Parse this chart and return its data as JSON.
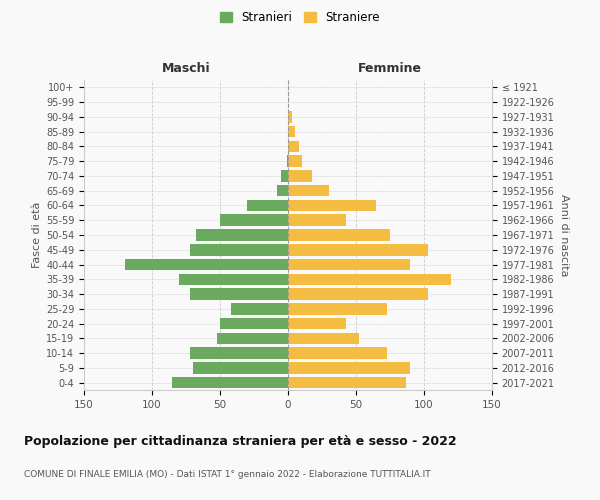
{
  "age_groups_bottom_to_top": [
    "0-4",
    "5-9",
    "10-14",
    "15-19",
    "20-24",
    "25-29",
    "30-34",
    "35-39",
    "40-44",
    "45-49",
    "50-54",
    "55-59",
    "60-64",
    "65-69",
    "70-74",
    "75-79",
    "80-84",
    "85-89",
    "90-94",
    "95-99",
    "100+"
  ],
  "birth_years_bottom_to_top": [
    "2017-2021",
    "2012-2016",
    "2007-2011",
    "2002-2006",
    "1997-2001",
    "1992-1996",
    "1987-1991",
    "1982-1986",
    "1977-1981",
    "1972-1976",
    "1967-1971",
    "1962-1966",
    "1957-1961",
    "1952-1956",
    "1947-1951",
    "1942-1946",
    "1937-1941",
    "1932-1936",
    "1927-1931",
    "1922-1926",
    "≤ 1921"
  ],
  "maschi_bottom_to_top": [
    85,
    70,
    72,
    52,
    50,
    42,
    72,
    80,
    120,
    72,
    68,
    50,
    30,
    8,
    5,
    1,
    0,
    0,
    0,
    0,
    0
  ],
  "femmine_bottom_to_top": [
    87,
    90,
    73,
    52,
    43,
    73,
    103,
    120,
    90,
    103,
    75,
    43,
    65,
    30,
    18,
    10,
    8,
    5,
    3,
    0,
    0
  ],
  "maschi_color": "#6aaa5e",
  "femmine_color": "#f5bc42",
  "background_color": "#f9f9f9",
  "grid_color": "#cccccc",
  "title": "Popolazione per cittadinanza straniera per età e sesso - 2022",
  "subtitle": "COMUNE DI FINALE EMILIA (MO) - Dati ISTAT 1° gennaio 2022 - Elaborazione TUTTITALIA.IT",
  "ylabel_left": "Fasce di età",
  "ylabel_right": "Anni di nascita",
  "header_maschi": "Maschi",
  "header_femmine": "Femmine",
  "legend_maschi": "Stranieri",
  "legend_femmine": "Straniere",
  "xlim": 150
}
